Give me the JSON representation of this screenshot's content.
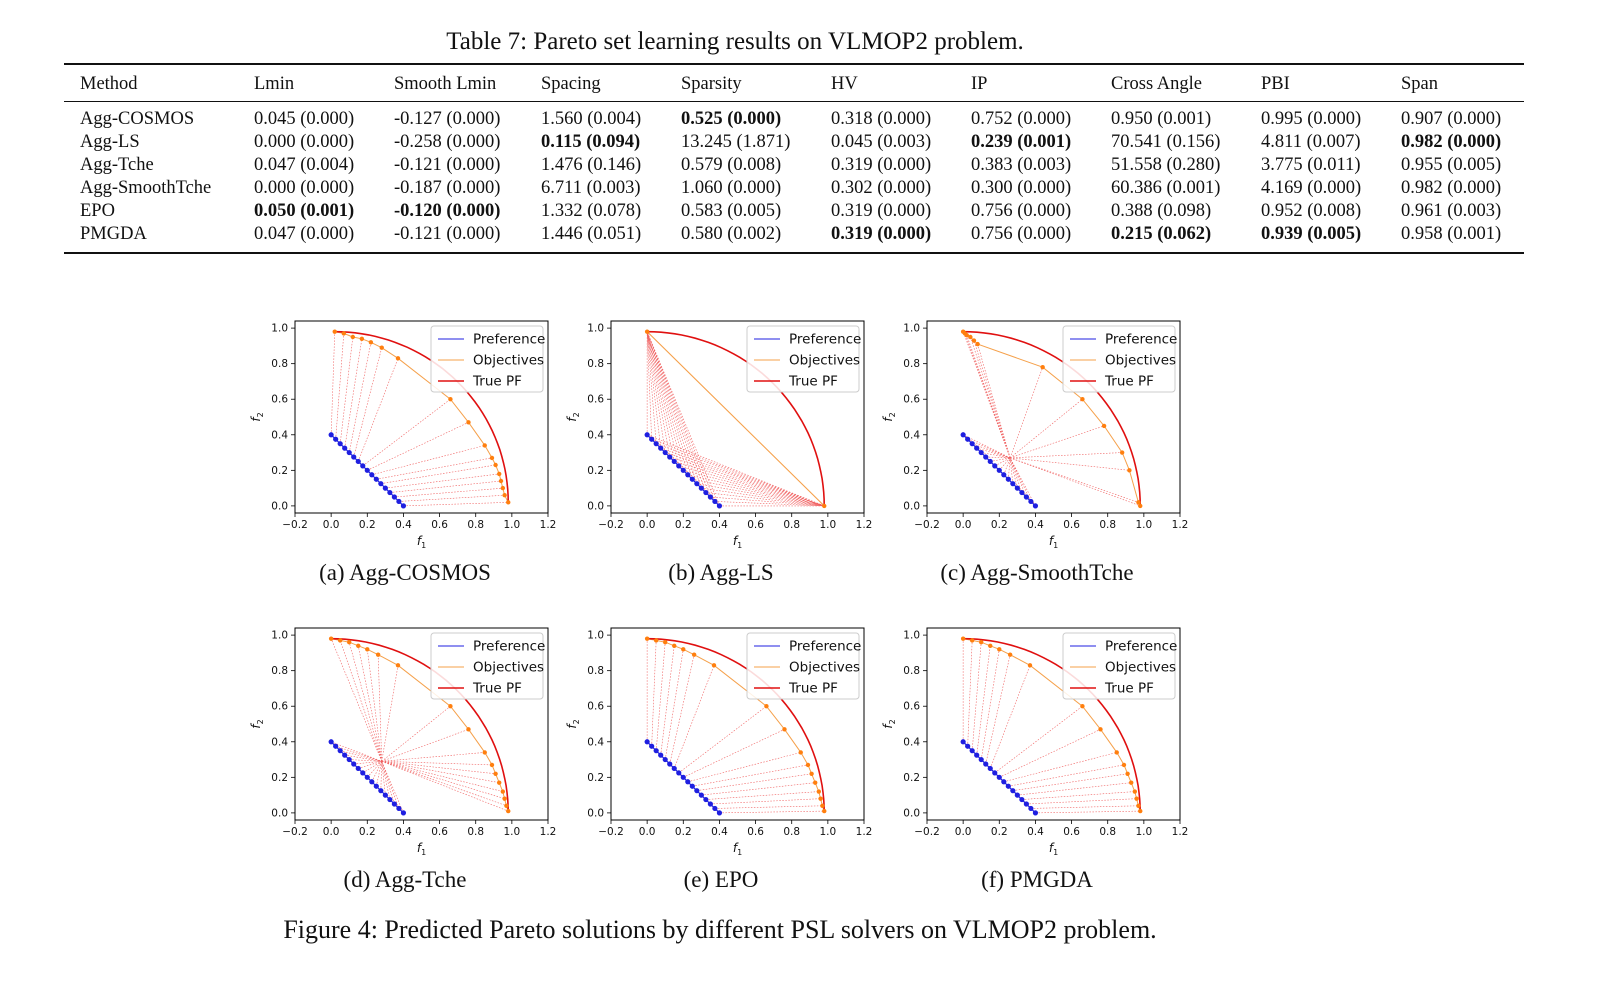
{
  "table": {
    "caption": "Table 7: Pareto set learning results on VLMOP2 problem.",
    "headers": [
      "Method",
      "Lmin",
      "Smooth Lmin",
      "Spacing",
      "Sparsity",
      "HV",
      "IP",
      "Cross Angle",
      "PBI",
      "Span"
    ],
    "rows": [
      {
        "method": "Agg-COSMOS",
        "cells": [
          {
            "v": "0.045 (0.000)"
          },
          {
            "v": "-0.127 (0.000)"
          },
          {
            "v": "1.560 (0.004)"
          },
          {
            "v": "0.525 (0.000)",
            "bold": true
          },
          {
            "v": "0.318 (0.000)"
          },
          {
            "v": "0.752 (0.000)"
          },
          {
            "v": "0.950 (0.001)"
          },
          {
            "v": "0.995 (0.000)"
          },
          {
            "v": "0.907 (0.000)"
          }
        ]
      },
      {
        "method": "Agg-LS",
        "cells": [
          {
            "v": "0.000 (0.000)"
          },
          {
            "v": "-0.258 (0.000)"
          },
          {
            "v": "0.115 (0.094)",
            "bold": true
          },
          {
            "v": "13.245 (1.871)"
          },
          {
            "v": "0.045 (0.003)"
          },
          {
            "v": "0.239 (0.001)",
            "bold": true
          },
          {
            "v": "70.541 (0.156)"
          },
          {
            "v": "4.811 (0.007)"
          },
          {
            "v": "0.982 (0.000)",
            "bold": true
          }
        ]
      },
      {
        "method": "Agg-Tche",
        "cells": [
          {
            "v": "0.047 (0.004)"
          },
          {
            "v": "-0.121 (0.000)"
          },
          {
            "v": "1.476 (0.146)"
          },
          {
            "v": "0.579 (0.008)"
          },
          {
            "v": "0.319 (0.000)"
          },
          {
            "v": "0.383 (0.003)"
          },
          {
            "v": "51.558 (0.280)"
          },
          {
            "v": "3.775 (0.011)"
          },
          {
            "v": "0.955 (0.005)"
          }
        ]
      },
      {
        "method": "Agg-SmoothTche",
        "cells": [
          {
            "v": "0.000 (0.000)"
          },
          {
            "v": "-0.187 (0.000)"
          },
          {
            "v": "6.711 (0.003)"
          },
          {
            "v": "1.060 (0.000)"
          },
          {
            "v": "0.302 (0.000)"
          },
          {
            "v": "0.300 (0.000)"
          },
          {
            "v": "60.386 (0.001)"
          },
          {
            "v": "4.169 (0.000)"
          },
          {
            "v": "0.982 (0.000)"
          }
        ]
      },
      {
        "method": "EPO",
        "cells": [
          {
            "v": "0.050 (0.001)",
            "bold": true
          },
          {
            "v": "-0.120 (0.000)",
            "bold": true
          },
          {
            "v": "1.332 (0.078)"
          },
          {
            "v": "0.583 (0.005)"
          },
          {
            "v": "0.319 (0.000)"
          },
          {
            "v": "0.756 (0.000)"
          },
          {
            "v": "0.388 (0.098)"
          },
          {
            "v": "0.952 (0.008)"
          },
          {
            "v": "0.961 (0.003)"
          }
        ]
      },
      {
        "method": "PMGDA",
        "cells": [
          {
            "v": "0.047 (0.000)"
          },
          {
            "v": "-0.121 (0.000)"
          },
          {
            "v": "1.446 (0.051)"
          },
          {
            "v": "0.580 (0.002)"
          },
          {
            "v": "0.319 (0.000)",
            "bold": true
          },
          {
            "v": "0.756 (0.000)"
          },
          {
            "v": "0.215 (0.062)",
            "bold": true
          },
          {
            "v": "0.939 (0.005)",
            "bold": true
          },
          {
            "v": "0.958 (0.001)"
          }
        ]
      }
    ]
  },
  "figure_caption": "Figure 4: Predicted Pareto solutions by different PSL solvers on VLMOP2 problem.",
  "subfigure_captions": [
    "(a) Agg-COSMOS",
    "(b) Agg-LS",
    "(c) Agg-SmoothTche",
    "(d) Agg-Tche",
    "(e) EPO",
    "(f) PMGDA"
  ],
  "colors": {
    "preference": "#1f1fe0",
    "objectives": "#f5a04a",
    "true_pf": "#e01010",
    "solution_points": "#ff7f0e",
    "mapping_lines": "#f06060"
  },
  "chart_data": [
    {
      "type": "scatter",
      "title": "",
      "xlabel": "f1",
      "ylabel": "f2",
      "xlim": [
        -0.2,
        1.2
      ],
      "ylim": [
        0.0,
        1.0
      ],
      "x_ticks": [
        "−0.2",
        "0.0",
        "0.2",
        "0.4",
        "0.6",
        "0.8",
        "1.0",
        "1.2"
      ],
      "y_ticks": [
        "0.0",
        "0.2",
        "0.4",
        "0.6",
        "0.8",
        "1.0"
      ],
      "legend": [
        "Preference",
        "Objectives",
        "True PF"
      ],
      "legend_position": "upper-right",
      "grid": false,
      "preference_segment": [
        [
          0.0,
          0.4
        ],
        [
          0.4,
          0.0
        ]
      ],
      "true_pf_range": [
        0.02,
        0.98
      ],
      "solution_points": [
        [
          0.02,
          0.98
        ],
        [
          0.07,
          0.97
        ],
        [
          0.12,
          0.95
        ],
        [
          0.17,
          0.94
        ],
        [
          0.22,
          0.92
        ],
        [
          0.28,
          0.89
        ],
        [
          0.37,
          0.83
        ],
        [
          0.66,
          0.6
        ],
        [
          0.76,
          0.47
        ],
        [
          0.85,
          0.34
        ],
        [
          0.89,
          0.27
        ],
        [
          0.91,
          0.23
        ],
        [
          0.93,
          0.18
        ],
        [
          0.94,
          0.14
        ],
        [
          0.95,
          0.1
        ],
        [
          0.96,
          0.06
        ],
        [
          0.98,
          0.02
        ]
      ],
      "hub": null,
      "extreme_mode": false
    },
    {
      "type": "scatter",
      "title": "",
      "xlabel": "f1",
      "ylabel": "f2",
      "xlim": [
        -0.2,
        1.2
      ],
      "ylim": [
        0.0,
        1.0
      ],
      "x_ticks": [
        "−0.2",
        "0.0",
        "0.2",
        "0.4",
        "0.6",
        "0.8",
        "1.0",
        "1.2"
      ],
      "y_ticks": [
        "0.0",
        "0.2",
        "0.4",
        "0.6",
        "0.8",
        "1.0"
      ],
      "legend": [
        "Preference",
        "Objectives",
        "True PF"
      ],
      "legend_position": "upper-right",
      "grid": false,
      "preference_segment": [
        [
          0.0,
          0.4
        ],
        [
          0.4,
          0.0
        ]
      ],
      "true_pf_range": [
        0.0,
        0.98
      ],
      "solution_points": [
        [
          0.0,
          0.98
        ],
        [
          0.98,
          0.0
        ]
      ],
      "hub": null,
      "extreme_mode": true
    },
    {
      "type": "scatter",
      "title": "",
      "xlabel": "f1",
      "ylabel": "f2",
      "xlim": [
        -0.2,
        1.2
      ],
      "ylim": [
        0.0,
        1.0
      ],
      "x_ticks": [
        "−0.2",
        "0.0",
        "0.2",
        "0.4",
        "0.6",
        "0.8",
        "1.0",
        "1.2"
      ],
      "y_ticks": [
        "0.0",
        "0.2",
        "0.4",
        "0.6",
        "0.8",
        "1.0"
      ],
      "legend": [
        "Preference",
        "Objectives",
        "True PF"
      ],
      "legend_position": "upper-right",
      "grid": false,
      "preference_segment": [
        [
          0.0,
          0.4
        ],
        [
          0.4,
          0.0
        ]
      ],
      "true_pf_range": [
        0.0,
        0.98
      ],
      "solution_points": [
        [
          0.0,
          0.98
        ],
        [
          0.01,
          0.97
        ],
        [
          0.02,
          0.96
        ],
        [
          0.04,
          0.95
        ],
        [
          0.06,
          0.93
        ],
        [
          0.08,
          0.91
        ],
        [
          0.44,
          0.78
        ],
        [
          0.66,
          0.6
        ],
        [
          0.78,
          0.45
        ],
        [
          0.88,
          0.3
        ],
        [
          0.92,
          0.2
        ],
        [
          0.97,
          0.02
        ],
        [
          0.98,
          0.0
        ]
      ],
      "hub": [
        0.26,
        0.27
      ],
      "extreme_mode": false
    },
    {
      "type": "scatter",
      "title": "",
      "xlabel": "f1",
      "ylabel": "f2",
      "xlim": [
        -0.2,
        1.2
      ],
      "ylim": [
        0.0,
        1.0
      ],
      "x_ticks": [
        "−0.2",
        "0.0",
        "0.2",
        "0.4",
        "0.6",
        "0.8",
        "1.0",
        "1.2"
      ],
      "y_ticks": [
        "0.0",
        "0.2",
        "0.4",
        "0.6",
        "0.8",
        "1.0"
      ],
      "legend": [
        "Preference",
        "Objectives",
        "True PF"
      ],
      "legend_position": "upper-right",
      "grid": false,
      "preference_segment": [
        [
          0.0,
          0.4
        ],
        [
          0.4,
          0.0
        ]
      ],
      "true_pf_range": [
        0.0,
        0.98
      ],
      "solution_points": [
        [
          0.0,
          0.98
        ],
        [
          0.05,
          0.97
        ],
        [
          0.1,
          0.96
        ],
        [
          0.15,
          0.94
        ],
        [
          0.2,
          0.92
        ],
        [
          0.26,
          0.89
        ],
        [
          0.37,
          0.83
        ],
        [
          0.66,
          0.6
        ],
        [
          0.76,
          0.47
        ],
        [
          0.85,
          0.34
        ],
        [
          0.89,
          0.27
        ],
        [
          0.91,
          0.22
        ],
        [
          0.93,
          0.17
        ],
        [
          0.95,
          0.12
        ],
        [
          0.96,
          0.08
        ],
        [
          0.97,
          0.04
        ],
        [
          0.98,
          0.01
        ]
      ],
      "hub": [
        0.28,
        0.29
      ],
      "extreme_mode": false
    },
    {
      "type": "scatter",
      "title": "",
      "xlabel": "f1",
      "ylabel": "f2",
      "xlim": [
        -0.2,
        1.2
      ],
      "ylim": [
        0.0,
        1.0
      ],
      "x_ticks": [
        "−0.2",
        "0.0",
        "0.2",
        "0.4",
        "0.6",
        "0.8",
        "1.0",
        "1.2"
      ],
      "y_ticks": [
        "0.0",
        "0.2",
        "0.4",
        "0.6",
        "0.8",
        "1.0"
      ],
      "legend": [
        "Preference",
        "Objectives",
        "True PF"
      ],
      "legend_position": "upper-right",
      "grid": false,
      "preference_segment": [
        [
          0.0,
          0.4
        ],
        [
          0.4,
          0.0
        ]
      ],
      "true_pf_range": [
        0.0,
        0.98
      ],
      "solution_points": [
        [
          0.0,
          0.98
        ],
        [
          0.05,
          0.97
        ],
        [
          0.1,
          0.96
        ],
        [
          0.15,
          0.94
        ],
        [
          0.2,
          0.92
        ],
        [
          0.26,
          0.89
        ],
        [
          0.37,
          0.83
        ],
        [
          0.66,
          0.6
        ],
        [
          0.76,
          0.47
        ],
        [
          0.85,
          0.34
        ],
        [
          0.89,
          0.27
        ],
        [
          0.91,
          0.22
        ],
        [
          0.93,
          0.17
        ],
        [
          0.95,
          0.12
        ],
        [
          0.96,
          0.08
        ],
        [
          0.97,
          0.04
        ],
        [
          0.98,
          0.01
        ]
      ],
      "hub": null,
      "extreme_mode": false
    },
    {
      "type": "scatter",
      "title": "",
      "xlabel": "f1",
      "ylabel": "f2",
      "xlim": [
        -0.2,
        1.2
      ],
      "ylim": [
        0.0,
        1.0
      ],
      "x_ticks": [
        "−0.2",
        "0.0",
        "0.2",
        "0.4",
        "0.6",
        "0.8",
        "1.0",
        "1.2"
      ],
      "y_ticks": [
        "0.0",
        "0.2",
        "0.4",
        "0.6",
        "0.8",
        "1.0"
      ],
      "legend": [
        "Preference",
        "Objectives",
        "True PF"
      ],
      "legend_position": "upper-right",
      "grid": false,
      "preference_segment": [
        [
          0.0,
          0.4
        ],
        [
          0.4,
          0.0
        ]
      ],
      "true_pf_range": [
        0.0,
        0.98
      ],
      "solution_points": [
        [
          0.0,
          0.98
        ],
        [
          0.05,
          0.97
        ],
        [
          0.1,
          0.96
        ],
        [
          0.15,
          0.94
        ],
        [
          0.2,
          0.92
        ],
        [
          0.26,
          0.89
        ],
        [
          0.37,
          0.83
        ],
        [
          0.66,
          0.6
        ],
        [
          0.76,
          0.47
        ],
        [
          0.85,
          0.34
        ],
        [
          0.89,
          0.27
        ],
        [
          0.91,
          0.22
        ],
        [
          0.93,
          0.17
        ],
        [
          0.95,
          0.12
        ],
        [
          0.96,
          0.08
        ],
        [
          0.97,
          0.04
        ],
        [
          0.98,
          0.01
        ]
      ],
      "hub": null,
      "extreme_mode": false
    }
  ]
}
